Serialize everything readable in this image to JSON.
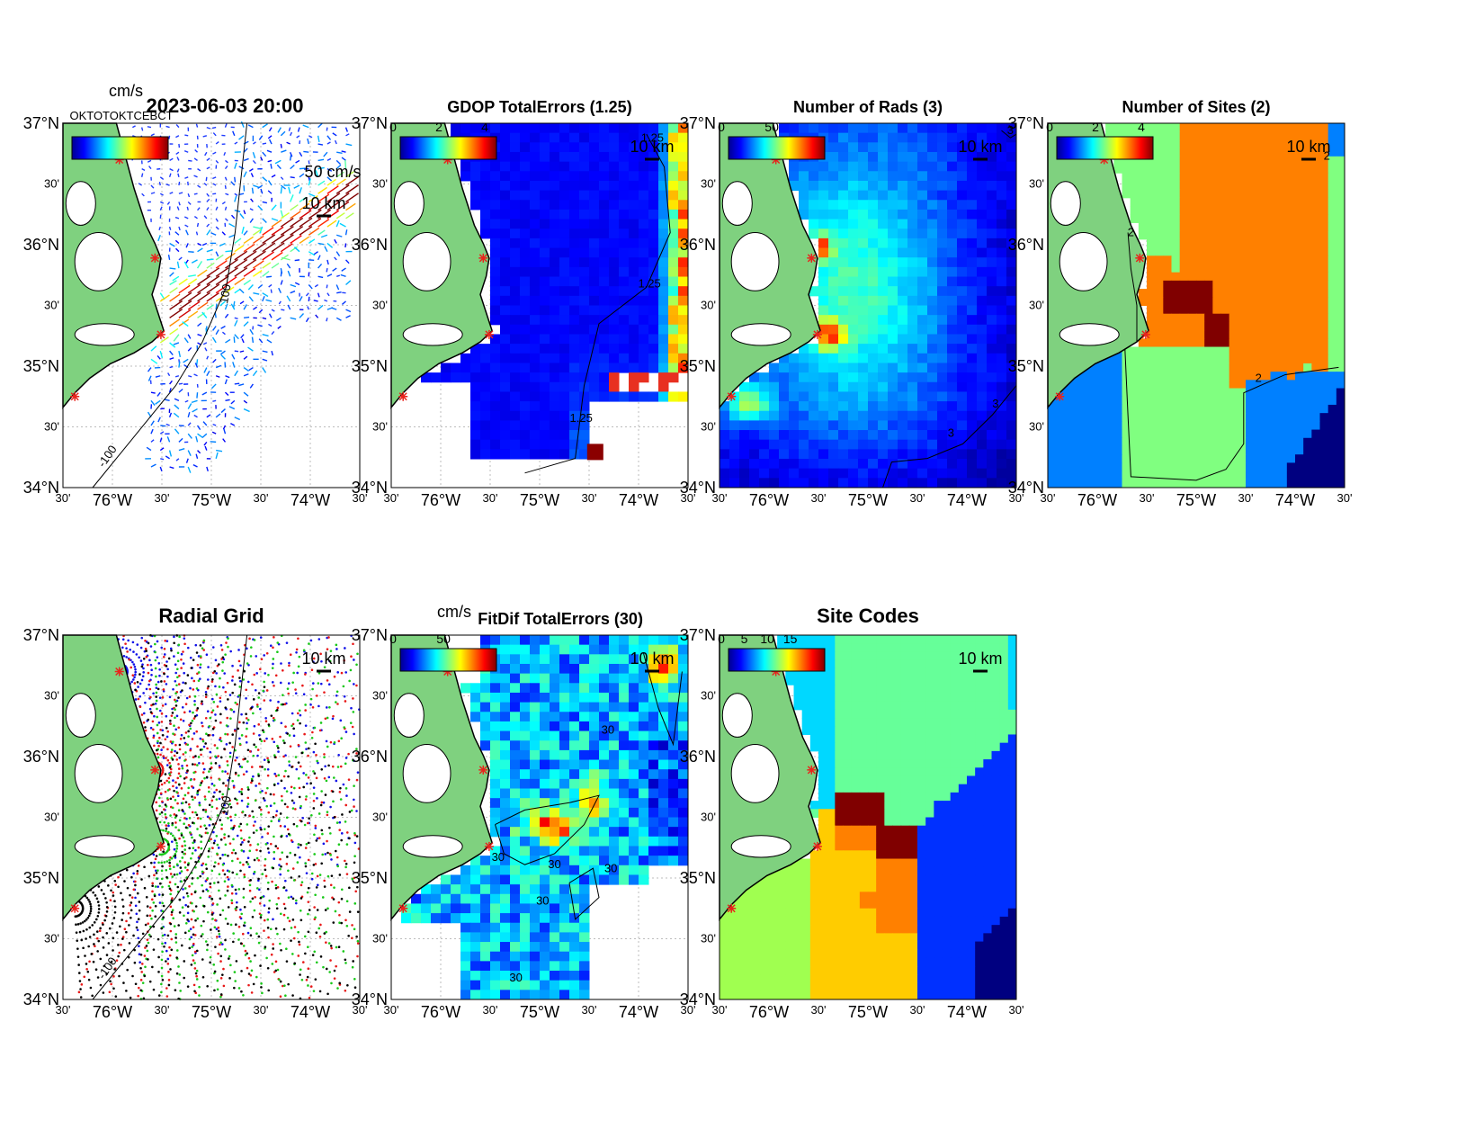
{
  "figure": {
    "lat_labels": [
      "37°N",
      "30'",
      "36°N",
      "30'",
      "35°N",
      "30'",
      "34°N"
    ],
    "lon_labels": [
      "30'",
      "76°W",
      "30'",
      "75°W",
      "30'",
      "74°W",
      "30'"
    ],
    "scale_label": "10 km"
  },
  "panels": [
    {
      "id": "totals",
      "title": "2023-06-03 20:00",
      "unit_label": "cm/s",
      "colorbar_ticks": [],
      "vector_scale_label": "50 cm/s",
      "contour_label": "-100",
      "contour_label_2": "100",
      "legend_overlap_text": "OKTOTOKTCEBCT"
    },
    {
      "id": "gdop",
      "title": "GDOP TotalErrors (1.25)",
      "colorbar_ticks": [
        "0",
        "2",
        "4"
      ],
      "contour_labels": [
        "1.25",
        "1.25",
        "1.25"
      ]
    },
    {
      "id": "rads",
      "title": "Number of Rads (3)",
      "colorbar_ticks": [
        "0",
        "50"
      ],
      "contour_labels": [
        "3",
        "3",
        "3"
      ]
    },
    {
      "id": "sites",
      "title": "Number of Sites (2)",
      "colorbar_ticks": [
        "0",
        "2",
        "4"
      ],
      "contour_labels": [
        "2",
        "2",
        "2"
      ]
    },
    {
      "id": "radial",
      "title": "Radial Grid",
      "contour_label": "-100",
      "contour_label_2": "100"
    },
    {
      "id": "fitdif",
      "title": "FitDif TotalErrors (30)",
      "unit_label": "cm/s",
      "colorbar_ticks": [
        "0",
        "50"
      ],
      "contour_labels": [
        "30",
        "30",
        "30",
        "30",
        "30",
        "30"
      ]
    },
    {
      "id": "codes",
      "title": "Site Codes",
      "colorbar_ticks": [
        "0",
        "5",
        "10",
        "15"
      ]
    }
  ],
  "colors": {
    "land": "#7fd17f",
    "site_marker": "#e8241c",
    "grid": "#bdbdbd"
  }
}
